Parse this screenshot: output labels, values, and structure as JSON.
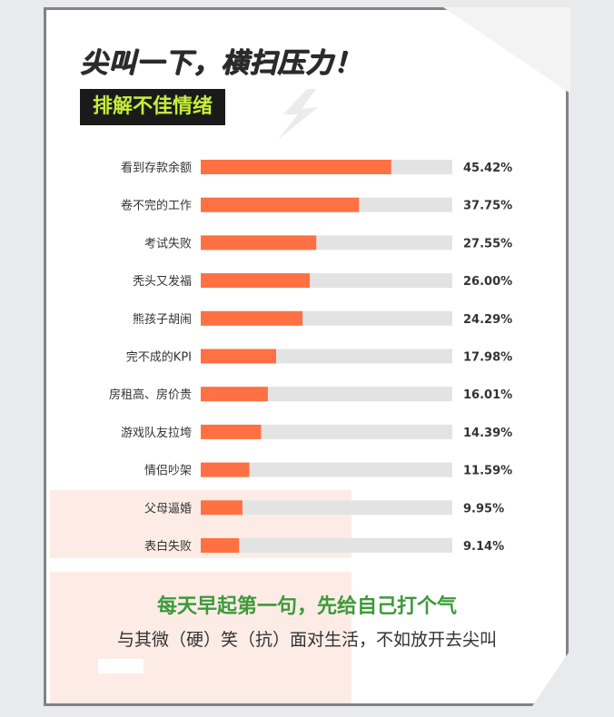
{
  "header": {
    "title": "尖叫一下，横扫压力！",
    "badge": "排解不佳情绪"
  },
  "footer": {
    "headline": "每天早起第一句，先给自己打个气",
    "subline": "与其微（硬）笑（抗）面对生活，不如放开去尖叫"
  },
  "colors": {
    "bar": "#ff7043",
    "track": "#e3e3e3",
    "badge_bg": "#1a1a1a",
    "badge_text": "#c5ee3b",
    "headline": "#3c9a3a"
  },
  "chart_data": {
    "type": "bar",
    "orientation": "horizontal",
    "categories": [
      "看到存款余额",
      "卷不完的工作",
      "考试失败",
      "秃头又发福",
      "熊孩子胡闹",
      "完不成的KPI",
      "房租高、房价贵",
      "游戏队友拉垮",
      "情侣吵架",
      "父母逼婚",
      "表白失败"
    ],
    "values": [
      45.42,
      37.75,
      27.55,
      26.0,
      24.29,
      17.98,
      16.01,
      14.39,
      11.59,
      9.95,
      9.14
    ],
    "value_labels": [
      "45.42%",
      "37.75%",
      "27.55%",
      "26.00%",
      "24.29%",
      "17.98%",
      "16.01%",
      "14.39%",
      "11.59%",
      "9.95%",
      "9.14%"
    ],
    "xlim": [
      0,
      60
    ],
    "grid": false,
    "legend": false
  }
}
